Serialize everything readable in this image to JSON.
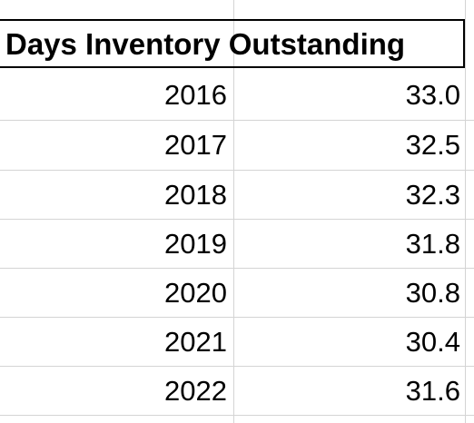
{
  "sheet": {
    "header": "Days Inventory Outstanding",
    "rows": [
      {
        "year": "2016",
        "value": "33.0"
      },
      {
        "year": "2017",
        "value": "32.5"
      },
      {
        "year": "2018",
        "value": "32.3"
      },
      {
        "year": "2019",
        "value": "31.8"
      },
      {
        "year": "2020",
        "value": "30.8"
      },
      {
        "year": "2021",
        "value": "30.4"
      },
      {
        "year": "2022",
        "value": "31.6"
      }
    ]
  }
}
